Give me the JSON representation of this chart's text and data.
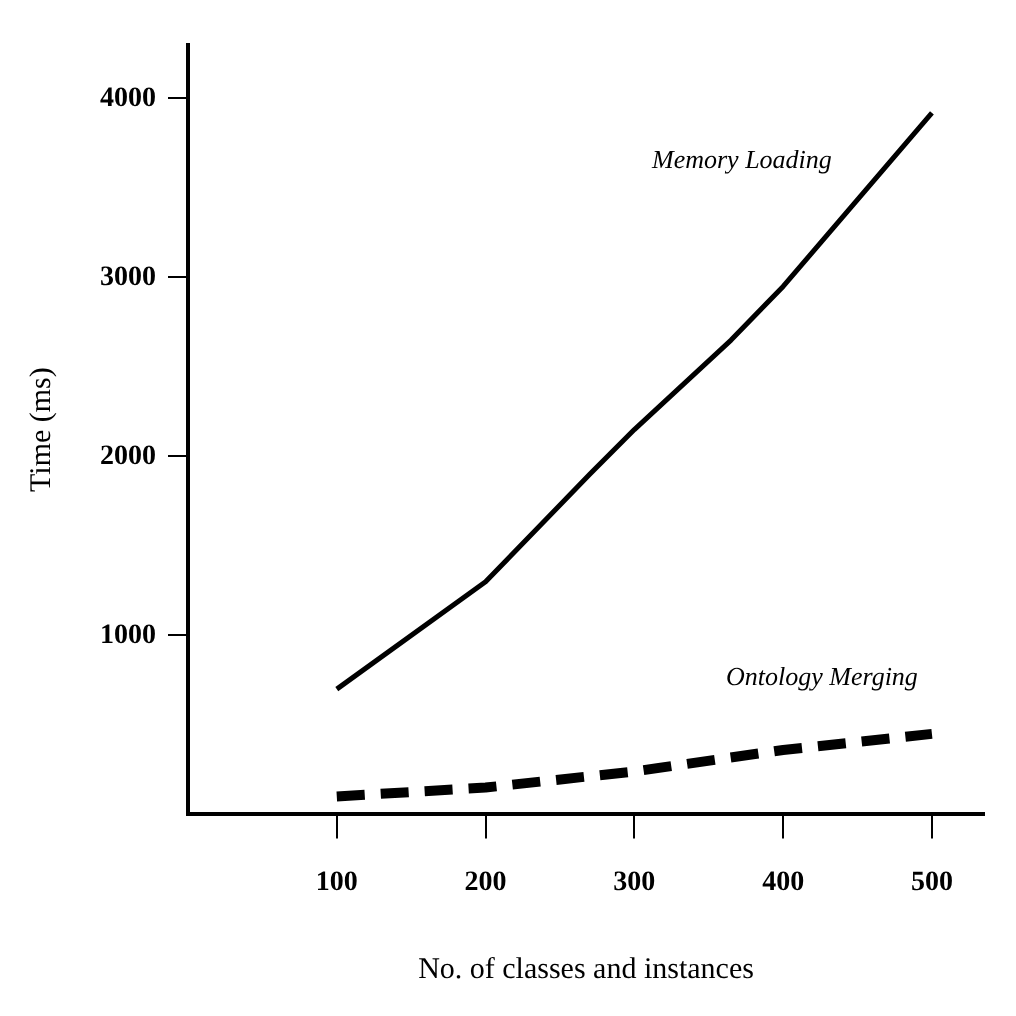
{
  "chart_data": {
    "type": "line",
    "xlabel": "No. of classes and instances",
    "ylabel": "Time (ms)",
    "xlim": [
      0,
      535
    ],
    "xticks": [
      100,
      200,
      300,
      400,
      500
    ],
    "ylim": [
      0,
      4300
    ],
    "yticks": [
      1000,
      2000,
      3000,
      4000
    ],
    "grid": false,
    "legend": false,
    "marker": "none",
    "series": [
      {
        "name": "Memory Loading",
        "color": "#000000",
        "line_style": "solid",
        "x": [
          100,
          200,
          270,
          300,
          365,
          400,
          500
        ],
        "values": [
          700,
          1300,
          1900,
          2150,
          2650,
          2950,
          3920
        ]
      },
      {
        "name": "Ontology Merging",
        "color": "#000000",
        "line_style": "dashed",
        "x": [
          100,
          200,
          300,
          400,
          500
        ],
        "values": [
          100,
          150,
          240,
          360,
          450
        ]
      }
    ]
  }
}
